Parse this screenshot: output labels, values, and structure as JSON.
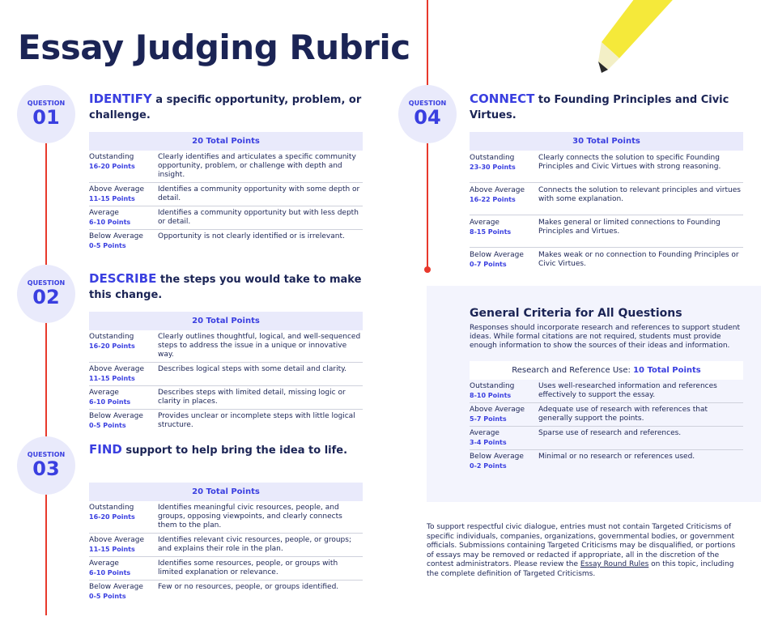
{
  "title": "Essay Judging Rubric",
  "question_label": "QUESTION",
  "sections": [
    {
      "number": "01",
      "keyword": "IDENTIFY",
      "heading": " a specific opportunity, problem, or challenge.",
      "total": "20 Total Points",
      "rows": [
        {
          "level": "Outstanding",
          "points": "16-20 Points",
          "desc": "Clearly identifies and articulates a specific community opportunity, problem, or challenge with depth and insight."
        },
        {
          "level": "Above Average",
          "points": "11-15 Points",
          "desc": "Identifies a community opportunity with some depth or detail."
        },
        {
          "level": "Average",
          "points": "6-10 Points",
          "desc": "Identifies a community opportunity but with less depth or detail."
        },
        {
          "level": "Below Average",
          "points": "0-5 Points",
          "desc": "Opportunity is not clearly identified or is irrelevant."
        }
      ]
    },
    {
      "number": "02",
      "keyword": "DESCRIBE",
      "heading": " the steps you would take to make this change.",
      "total": "20 Total Points",
      "rows": [
        {
          "level": "Outstanding",
          "points": "16-20 Points",
          "desc": "Clearly outlines thoughtful, logical, and well-sequenced steps to address the issue in a unique or innovative way."
        },
        {
          "level": "Above Average",
          "points": "11-15 Points",
          "desc": "Describes logical steps with some detail and clarity."
        },
        {
          "level": "Average",
          "points": "6-10 Points",
          "desc": "Describes steps with limited detail, missing logic or clarity in places."
        },
        {
          "level": "Below Average",
          "points": "0-5 Points",
          "desc": "Provides unclear or incomplete steps with little logical structure."
        }
      ]
    },
    {
      "number": "03",
      "keyword": "FIND",
      "heading": " support to help bring the idea to life.",
      "total": "20 Total Points",
      "rows": [
        {
          "level": "Outstanding",
          "points": "16-20 Points",
          "desc": "Identifies meaningful civic resources, people, and groups, opposing viewpoints, and clearly connects them to the plan."
        },
        {
          "level": "Above Average",
          "points": "11-15 Points",
          "desc": "Identifies relevant civic resources, people, or groups; and explains their role in the plan."
        },
        {
          "level": "Average",
          "points": "6-10 Points",
          "desc": "Identifies some resources, people, or groups with limited explanation or relevance."
        },
        {
          "level": "Below Average",
          "points": "0-5 Points",
          "desc": "Few or no resources, people, or groups identified."
        }
      ]
    },
    {
      "number": "04",
      "keyword": "CONNECT",
      "heading": " to Founding Principles and Civic Virtues.",
      "total": "30 Total Points",
      "rows": [
        {
          "level": "Outstanding",
          "points": "23-30 Points",
          "desc": "Clearly connects the solution to specific Founding Principles and Civic Virtues with strong reasoning."
        },
        {
          "level": "Above Average",
          "points": "16-22 Points",
          "desc": "Connects the solution to relevant principles and virtues with some explanation."
        },
        {
          "level": "Average",
          "points": "8-15 Points",
          "desc": "Makes general or limited connections to Founding Principles and Virtues."
        },
        {
          "level": "Below Average",
          "points": "0-7 Points",
          "desc": "Makes weak or no connection to Founding Principles or Civic Virtues."
        }
      ]
    }
  ],
  "general": {
    "title": "General Criteria for All Questions",
    "text": "Responses should incorporate research and references to support student ideas. While formal citations are not required, students must provide enough information to show the sources of their ideas and information.",
    "head_label": "Research and Reference Use: ",
    "head_total": "10 Total Points",
    "rows": [
      {
        "level": "Outstanding",
        "points": "8-10 Points",
        "desc": "Uses well-researched information and references effectively to support the essay."
      },
      {
        "level": "Above Average",
        "points": "5-7 Points",
        "desc": "Adequate use of research with references that generally support the points."
      },
      {
        "level": "Average",
        "points": "3-4 Points",
        "desc": "Sparse use of research and references."
      },
      {
        "level": "Below Average",
        "points": "0-2 Points",
        "desc": "Minimal or no research or references used."
      }
    ]
  },
  "footer": {
    "before": "To support respectful civic dialogue, entries must not contain Targeted Criticisms of specific individuals, companies, organizations, governmental bodies, or government officials. Submissions containing Targeted Criticisms may be disqualified, or portions of essays may be removed or redacted if appropriate, all in the discretion of the contest administrators.  Please review the ",
    "link": "Essay Round Rules",
    "after": " on this topic, including the complete definition of Targeted Criticisms."
  },
  "colors": {
    "navy": "#1b2455",
    "accent": "#3a3fe0",
    "line": "#e8392c",
    "tint": "#e9eafb",
    "pencil": "#f5e93a"
  }
}
